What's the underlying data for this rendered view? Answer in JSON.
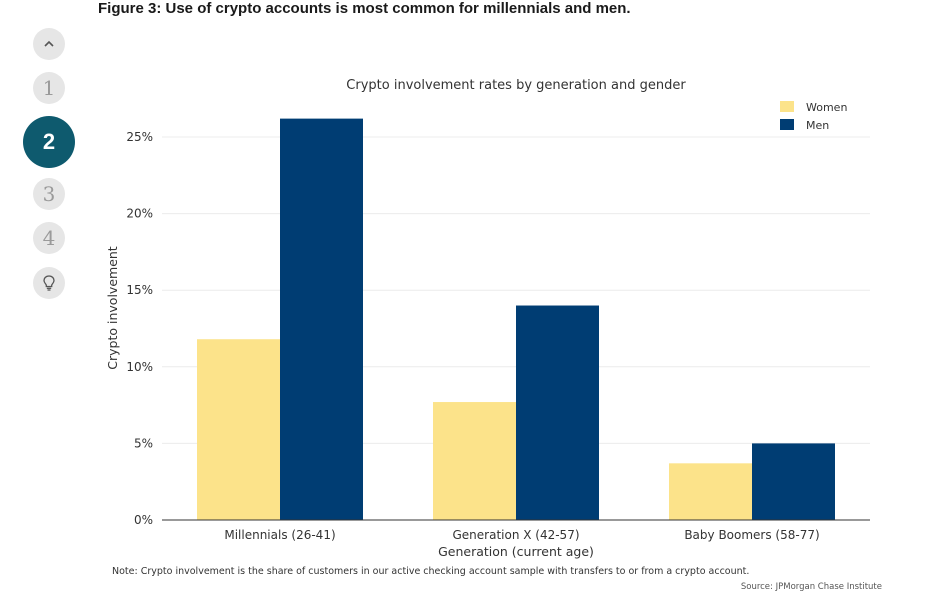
{
  "figure_title": "Figure 3: Use of crypto accounts is most common for millennials and men.",
  "nav": {
    "up_icon": "chevron-up-icon",
    "items": [
      "1",
      "2",
      "3",
      "4"
    ],
    "active": "2",
    "tip_icon": "lightbulb-icon"
  },
  "chart_data": {
    "type": "bar",
    "title": "Crypto involvement rates by generation and gender",
    "xlabel": "Generation (current age)",
    "ylabel": "Crypto involvement",
    "categories": [
      "Millennials (26-41)",
      "Generation X (42-57)",
      "Baby Boomers (58-77)"
    ],
    "series": [
      {
        "name": "Women",
        "color": "#fce38a",
        "values": [
          11.8,
          7.7,
          3.7
        ]
      },
      {
        "name": "Men",
        "color": "#003d73",
        "values": [
          26.2,
          14.0,
          5.0
        ]
      }
    ],
    "ylim": [
      0,
      25
    ],
    "yticks": [
      0,
      5,
      10,
      15,
      20,
      25
    ],
    "ytick_labels": [
      "0%",
      "5%",
      "10%",
      "15%",
      "20%",
      "25%"
    ],
    "grid": true,
    "legend_position": "top-right"
  },
  "note": "Note: Crypto involvement is the share of customers in our active checking account sample with transfers to or from a crypto account.",
  "source": "Source: JPMorgan Chase Institute"
}
